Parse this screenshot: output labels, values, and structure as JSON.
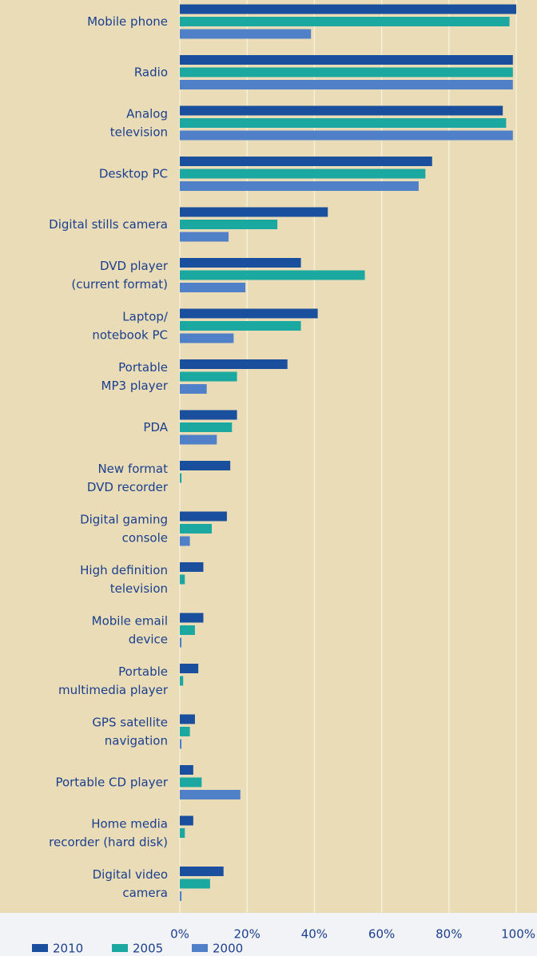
{
  "chart_data": {
    "type": "hbar",
    "categories": [
      "Mobile phone",
      "Radio",
      "Analog\ntelevision",
      "Desktop PC",
      "Digital stills camera",
      "DVD player\n(current format)",
      "Laptop/\nnotebook PC",
      "Portable\nMP3 player",
      "PDA",
      "New format\nDVD recorder",
      "Digital gaming\nconsole",
      "High definition\ntelevision",
      "Mobile email\ndevice",
      "Portable\nmultimedia player",
      "GPS satellite\nnavigation",
      "Portable CD player",
      "Home media\nrecorder (hard disk)",
      "Digital video\ncamera"
    ],
    "series": [
      {
        "name": "2010",
        "color": "#1a4f9e",
        "values": [
          100,
          99,
          96,
          75,
          44,
          36,
          41,
          32,
          17,
          15,
          14,
          7,
          7,
          5.5,
          4.5,
          4,
          4,
          13
        ]
      },
      {
        "name": "2005",
        "color": "#1aa8a0",
        "values": [
          98,
          99,
          97,
          73,
          29,
          55,
          36,
          17,
          15.5,
          0.5,
          9.5,
          1.5,
          4.5,
          1,
          3,
          6.5,
          1.5,
          9
        ]
      },
      {
        "name": "2000",
        "color": "#5080c8",
        "values": [
          39,
          99,
          99,
          71,
          14.5,
          19.5,
          16,
          8,
          11,
          0,
          3,
          0,
          0.5,
          0,
          0.5,
          18,
          0,
          0.5
        ]
      }
    ],
    "xlim": [
      0,
      100
    ],
    "xticks": [
      {
        "value": 0,
        "label": "0%"
      },
      {
        "value": 20,
        "label": "20%"
      },
      {
        "value": 40,
        "label": "40%"
      },
      {
        "value": 60,
        "label": "60%"
      },
      {
        "value": 80,
        "label": "80%"
      },
      {
        "value": 100,
        "label": "100%"
      }
    ],
    "grid": true
  }
}
